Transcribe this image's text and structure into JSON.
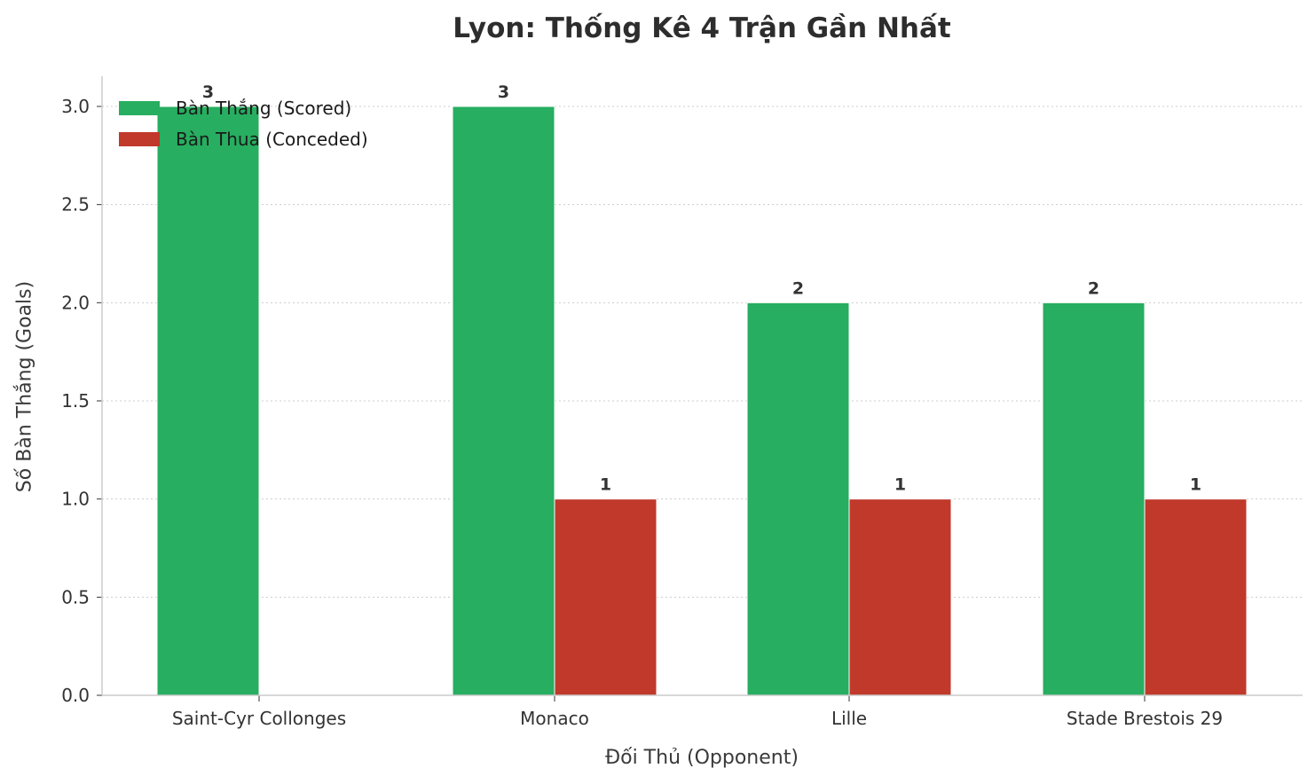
{
  "title": "Lyon: Thống Kê 4 Trận Gần Nhất",
  "axes": {
    "xlabel": "Đối Thủ (Opponent)",
    "ylabel": "Số Bàn Thắng (Goals)"
  },
  "legend": [
    {
      "label": "Bàn Thắng (Scored)",
      "color": "#27ae60"
    },
    {
      "label": "Bàn Thua (Conceded)",
      "color": "#c0392b"
    }
  ],
  "chart_data": {
    "type": "bar",
    "title": "Lyon: Thống Kê 4 Trận Gần Nhất",
    "xlabel": "Đối Thủ (Opponent)",
    "ylabel": "Số Bàn Thắng (Goals)",
    "categories": [
      "Saint-Cyr Collonges",
      "Monaco",
      "Lille",
      "Stade Brestois 29"
    ],
    "series": [
      {
        "name": "Bàn Thắng (Scored)",
        "color": "#27ae60",
        "values": [
          3,
          3,
          2,
          2
        ]
      },
      {
        "name": "Bàn Thua (Conceded)",
        "color": "#c0392b",
        "values": [
          0,
          1,
          1,
          1
        ]
      }
    ],
    "data_labels": {
      "scored": [
        "3",
        "3",
        "2",
        "2"
      ],
      "conceded": [
        "",
        "1",
        "1",
        "1"
      ]
    },
    "ylim": [
      0,
      3.0
    ],
    "yticks": [
      "0.0",
      "0.5",
      "1.0",
      "1.5",
      "2.0",
      "2.5",
      "3.0"
    ],
    "grid": "y dotted",
    "legend_position": "upper left"
  }
}
